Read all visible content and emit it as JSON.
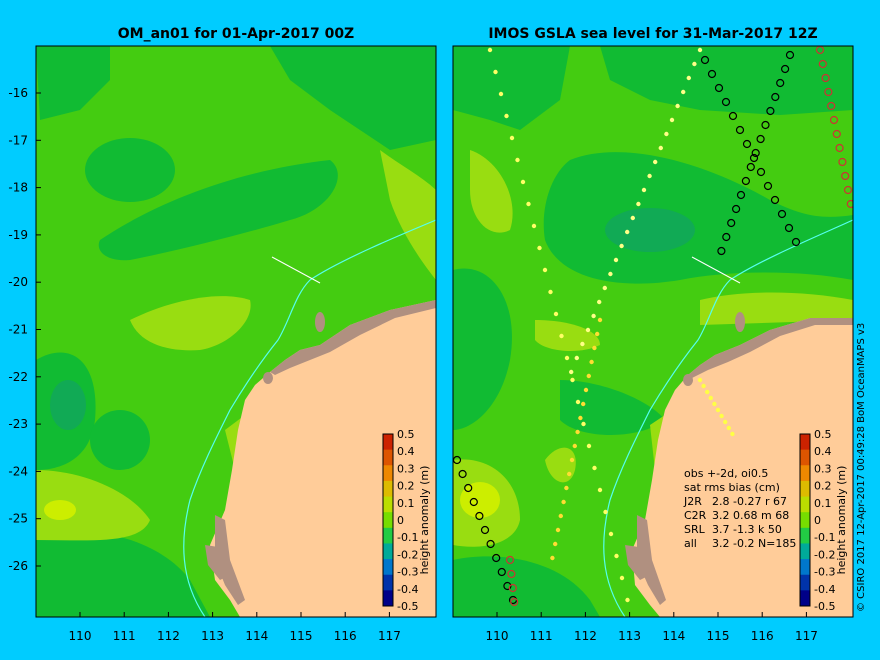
{
  "left_panel": {
    "title": "OM_an01 for 01-Apr-2017 00Z",
    "x_ticks": [
      "110",
      "111",
      "112",
      "113",
      "114",
      "115",
      "116",
      "117"
    ],
    "y_ticks": [
      "-16",
      "-17",
      "-18",
      "-19",
      "-20",
      "-21",
      "-22",
      "-23",
      "-24",
      "-25",
      "-26"
    ],
    "colorbar": {
      "label": "height anomaly (m)",
      "ticks": [
        "0.5",
        "0.4",
        "0.3",
        "0.2",
        "0.1",
        "0",
        "-0.1",
        "-0.2",
        "-0.3",
        "-0.4",
        "-0.5"
      ]
    }
  },
  "right_panel": {
    "title": "IMOS GSLA sea level  for 31-Mar-2017 12Z",
    "x_ticks": [
      "110",
      "111",
      "112",
      "113",
      "114",
      "115",
      "116",
      "117"
    ],
    "colorbar": {
      "label": "height anomaly (m)",
      "ticks": [
        "0.5",
        "0.4",
        "0.3",
        "0.2",
        "0.1",
        "0",
        "-0.1",
        "-0.2",
        "-0.3",
        "-0.4",
        "-0.5"
      ]
    },
    "stats": {
      "line1": "obs +-2d, oi0.5",
      "line2": "sat rms bias (cm)",
      "rows": [
        {
          "sat": "J2R",
          "vals": "2.8 -0.27 r 67"
        },
        {
          "sat": "C2R",
          "vals": "3.2 0.68 m 68"
        },
        {
          "sat": "SRL",
          "vals": "3.7 -1.3 k 50"
        },
        {
          "sat": "all",
          "vals": "3.2 -0.2 N=185"
        }
      ]
    }
  },
  "credit": "© CSIRO 2017  12-Apr-2017 00:49:28 BoM OceanMAPS v3",
  "colors": {
    "background": "#00ccff",
    "ocean_base": "#44cc11",
    "ocean_low": "#11bb33",
    "ocean_lower": "#11aa55",
    "ocean_high": "#99dd11",
    "ocean_higher": "#ccee00",
    "land": "#ffcc99",
    "island": "#b09080",
    "isobath": "#55ffee"
  }
}
